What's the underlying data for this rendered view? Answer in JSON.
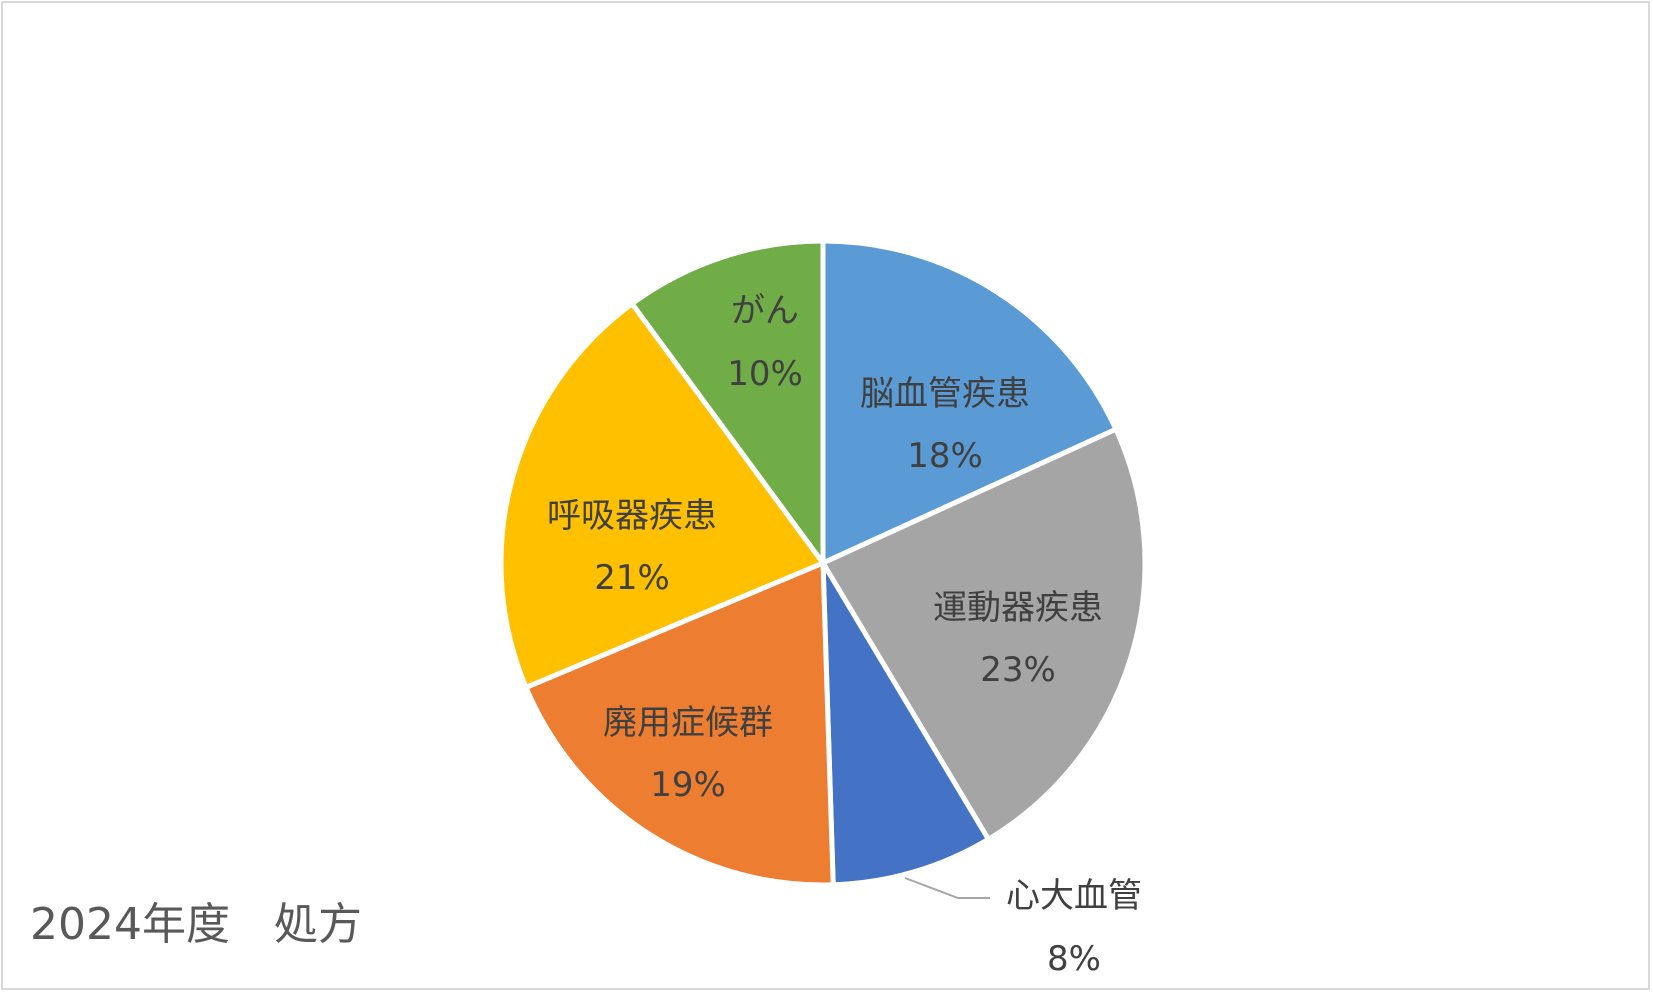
{
  "caption": "2024年度　処方",
  "chart_data": {
    "type": "pie",
    "title": "",
    "start_angle_deg": 0,
    "direction": "clockwise",
    "slices": [
      {
        "label": "脳血管疾患",
        "value": 18,
        "display": "18%",
        "color": "#5B9BD5"
      },
      {
        "label": "運動器疾患",
        "value": 23,
        "display": "23%",
        "color": "#A5A5A5"
      },
      {
        "label": "心大血管",
        "value": 8,
        "display": "8%",
        "color": "#4472C4"
      },
      {
        "label": "廃用症候群",
        "value": 19,
        "display": "19%",
        "color": "#ED7D31"
      },
      {
        "label": "呼吸器疾患",
        "value": 21,
        "display": "21%",
        "color": "#FFC000"
      },
      {
        "label": "がん",
        "value": 10,
        "display": "10%",
        "color": "#70AD47"
      }
    ],
    "legend": "none"
  }
}
